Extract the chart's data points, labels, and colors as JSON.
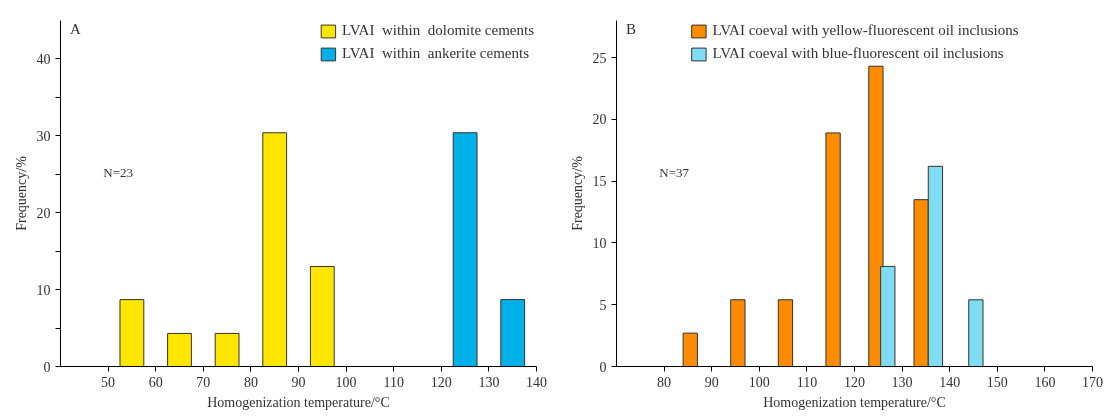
{
  "chart_data": [
    {
      "type": "bar",
      "annotations": [
        "A",
        "N=23"
      ],
      "xlabel": "Homogenization temperature/°C",
      "ylabel": "Frequency/%",
      "xlim": [
        40,
        140
      ],
      "xticks": [
        50,
        60,
        70,
        80,
        90,
        100,
        110,
        120,
        130,
        140
      ],
      "ylim": [
        0,
        45
      ],
      "yticks": [
        0,
        {
          "value": 5,
          "label": null
        },
        10,
        {
          "value": 15,
          "label": null
        },
        20,
        {
          "value": 25,
          "label": null
        },
        30,
        {
          "value": 35,
          "label": null
        },
        40
      ],
      "grid": false,
      "legend": "top right",
      "series": [
        {
          "name": "LVAI  within  dolomite cements",
          "color": "#ffe600",
          "x": [
            55,
            65,
            75,
            85,
            95
          ],
          "values": [
            8.7,
            4.3,
            4.3,
            30.4,
            13.0
          ]
        },
        {
          "name": "LVAI  within  ankerite cements",
          "color": "#00b0e8",
          "x": [
            125,
            135
          ],
          "values": [
            30.4,
            8.7
          ]
        }
      ]
    },
    {
      "type": "bar",
      "annotations": [
        "B",
        "N=37"
      ],
      "xlabel": "Homogenization temperature/°C",
      "ylabel": "Frequency/%",
      "xlim": [
        70,
        170
      ],
      "xticks": [
        80,
        90,
        100,
        110,
        120,
        130,
        140,
        150,
        160,
        170
      ],
      "ylim": [
        0,
        28
      ],
      "yticks": [
        0,
        5,
        10,
        15,
        20,
        25
      ],
      "grid": false,
      "legend": "top",
      "series": [
        {
          "name": "LVAI coeval with yellow-fluorescent oil inclusions",
          "color": "#ff8c00",
          "x": [
            85.5,
            95.5,
            105.5,
            115.5,
            124.5,
            134
          ],
          "values": [
            2.7,
            5.4,
            5.4,
            18.9,
            24.3,
            13.5
          ]
        },
        {
          "name": "LVAI coeval with blue-fluorescent oil inclusions",
          "color": "#80dcf2",
          "x": [
            127,
            137,
            145.5
          ],
          "values": [
            8.1,
            16.2,
            5.4
          ]
        }
      ]
    }
  ]
}
